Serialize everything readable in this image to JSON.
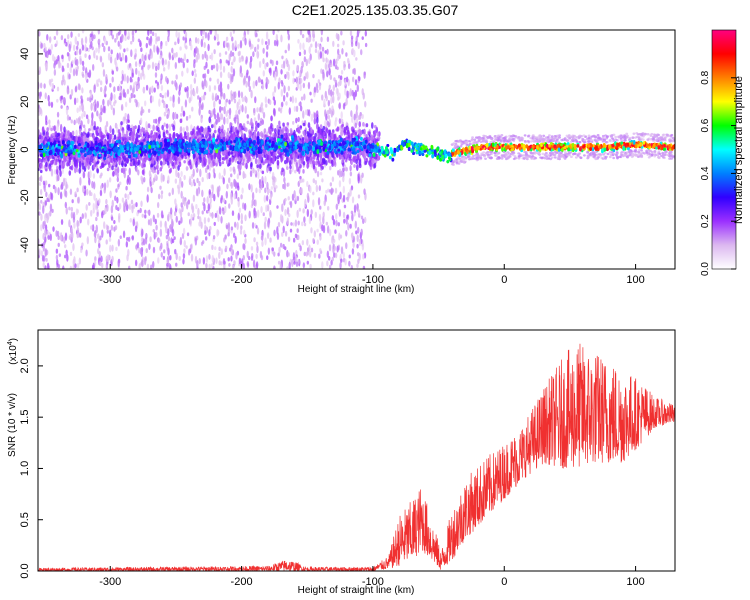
{
  "figure": {
    "title": "C2E1.2025.135.03.35.G07"
  },
  "chart_data": [
    {
      "type": "heatmap",
      "xlabel": "Height of straight line (km)",
      "ylabel": "Frequency (Hz)",
      "xlim": [
        -355,
        130
      ],
      "ylim": [
        -50,
        50
      ],
      "x_ticks": [
        -300,
        -200,
        -100,
        0,
        100
      ],
      "y_ticks": [
        -40,
        -20,
        0,
        20,
        40
      ],
      "grid": false,
      "colorbar": {
        "label": "Normalized spectral amplitude",
        "range": [
          0.0,
          1.0
        ],
        "ticks": [
          0.0,
          0.2,
          0.4,
          0.6,
          0.8
        ],
        "tick_labels": [
          "0.0",
          "0.2",
          "0.4",
          "0.6",
          "0.8"
        ],
        "colormap": [
          "#ffffff",
          "#dcb8f0",
          "#9b30ff",
          "#3000ff",
          "#0080ff",
          "#00ffff",
          "#00ff00",
          "#ffff00",
          "#ff8000",
          "#ff0000",
          "#ff0080"
        ]
      },
      "signal_track": [
        {
          "x": -355,
          "y": 0
        },
        {
          "x": -300,
          "y": 0
        },
        {
          "x": -250,
          "y": 1
        },
        {
          "x": -200,
          "y": 2
        },
        {
          "x": -150,
          "y": 1
        },
        {
          "x": -110,
          "y": 2
        },
        {
          "x": -95,
          "y": 0
        },
        {
          "x": -85,
          "y": -2
        },
        {
          "x": -75,
          "y": 2
        },
        {
          "x": -65,
          "y": 1
        },
        {
          "x": -55,
          "y": -1
        },
        {
          "x": -45,
          "y": -3
        },
        {
          "x": -35,
          "y": -1
        },
        {
          "x": -25,
          "y": 0
        },
        {
          "x": -15,
          "y": 1
        },
        {
          "x": 0,
          "y": 1
        },
        {
          "x": 20,
          "y": 1
        },
        {
          "x": 50,
          "y": 1
        },
        {
          "x": 80,
          "y": 1
        },
        {
          "x": 100,
          "y": 2
        },
        {
          "x": 130,
          "y": 1
        }
      ]
    },
    {
      "type": "line",
      "xlabel": "Height of straight line (km)",
      "ylabel": "SNR (10 * v/v)",
      "multiplier_label": "(x10",
      "multiplier_exponent": "4",
      "multiplier_close": ")",
      "xlim": [
        -355,
        130
      ],
      "ylim": [
        0,
        2.35
      ],
      "x_ticks": [
        -300,
        -200,
        -100,
        0,
        100
      ],
      "y_ticks": [
        0.0,
        0.5,
        1.0,
        1.5,
        2.0
      ],
      "y_tick_labels": [
        "0.0",
        "0.5",
        "1.0",
        "1.5",
        "2.0"
      ],
      "grid": false,
      "color": "#f03030",
      "envelope": [
        {
          "x": -355,
          "lo": 0.0,
          "hi": 0.03
        },
        {
          "x": -180,
          "lo": 0.0,
          "hi": 0.05
        },
        {
          "x": -165,
          "lo": 0.0,
          "hi": 0.12
        },
        {
          "x": -150,
          "lo": 0.0,
          "hi": 0.04
        },
        {
          "x": -100,
          "lo": 0.0,
          "hi": 0.04
        },
        {
          "x": -88,
          "lo": 0.02,
          "hi": 0.15
        },
        {
          "x": -80,
          "lo": 0.05,
          "hi": 0.55
        },
        {
          "x": -70,
          "lo": 0.1,
          "hi": 0.7
        },
        {
          "x": -63,
          "lo": 0.2,
          "hi": 0.85
        },
        {
          "x": -55,
          "lo": 0.1,
          "hi": 0.5
        },
        {
          "x": -48,
          "lo": 0.0,
          "hi": 0.2
        },
        {
          "x": -40,
          "lo": 0.1,
          "hi": 0.6
        },
        {
          "x": -30,
          "lo": 0.3,
          "hi": 0.9
        },
        {
          "x": -15,
          "lo": 0.5,
          "hi": 1.1
        },
        {
          "x": 0,
          "lo": 0.7,
          "hi": 1.25
        },
        {
          "x": 15,
          "lo": 0.9,
          "hi": 1.45
        },
        {
          "x": 30,
          "lo": 1.05,
          "hi": 1.8
        },
        {
          "x": 45,
          "lo": 1.0,
          "hi": 2.1
        },
        {
          "x": 55,
          "lo": 1.0,
          "hi": 2.25
        },
        {
          "x": 70,
          "lo": 1.05,
          "hi": 2.15
        },
        {
          "x": 90,
          "lo": 1.05,
          "hi": 2.0
        },
        {
          "x": 105,
          "lo": 1.25,
          "hi": 1.85
        },
        {
          "x": 115,
          "lo": 1.4,
          "hi": 1.7
        },
        {
          "x": 130,
          "lo": 1.45,
          "hi": 1.62
        }
      ]
    }
  ]
}
